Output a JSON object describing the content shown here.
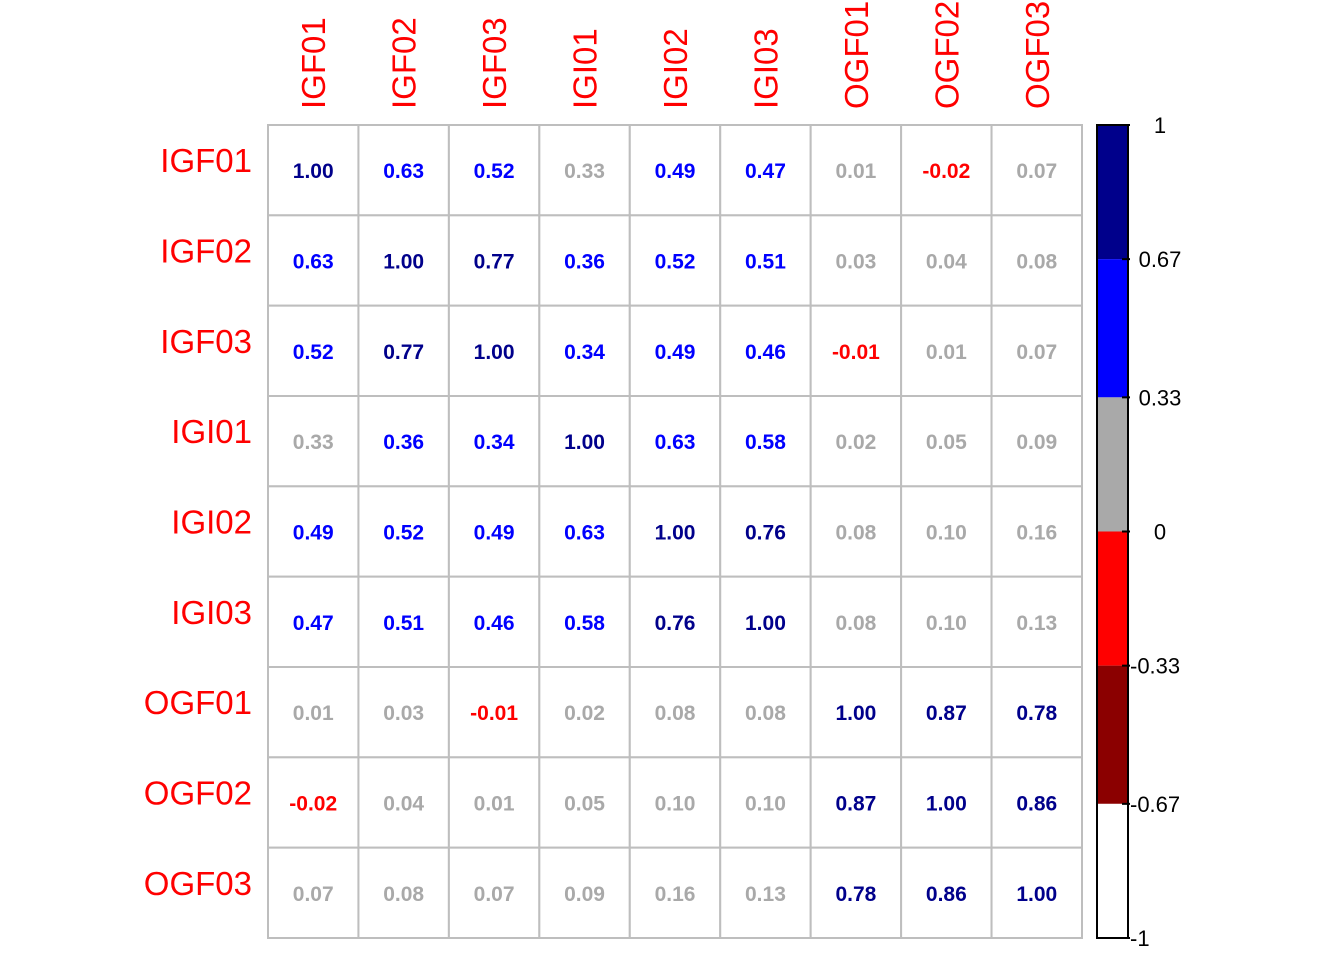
{
  "chart_data": {
    "type": "heatmap",
    "title": "",
    "row_labels": [
      "IGF01",
      "IGF02",
      "IGF03",
      "IGI01",
      "IGI02",
      "IGI03",
      "OGF01",
      "OGF02",
      "OGF03"
    ],
    "col_labels": [
      "IGF01",
      "IGF02",
      "IGF03",
      "IGI01",
      "IGI02",
      "IGI03",
      "OGF01",
      "OGF02",
      "OGF03"
    ],
    "values": [
      [
        1.0,
        0.63,
        0.52,
        0.33,
        0.49,
        0.47,
        0.01,
        -0.02,
        0.07
      ],
      [
        0.63,
        1.0,
        0.77,
        0.36,
        0.52,
        0.51,
        0.03,
        0.04,
        0.08
      ],
      [
        0.52,
        0.77,
        1.0,
        0.34,
        0.49,
        0.46,
        -0.01,
        0.01,
        0.07
      ],
      [
        0.33,
        0.36,
        0.34,
        1.0,
        0.63,
        0.58,
        0.02,
        0.05,
        0.09
      ],
      [
        0.49,
        0.52,
        0.49,
        0.63,
        1.0,
        0.76,
        0.08,
        0.1,
        0.16
      ],
      [
        0.47,
        0.51,
        0.46,
        0.58,
        0.76,
        1.0,
        0.08,
        0.1,
        0.13
      ],
      [
        0.01,
        0.03,
        -0.01,
        0.02,
        0.08,
        0.08,
        1.0,
        0.87,
        0.78
      ],
      [
        -0.02,
        0.04,
        0.01,
        0.05,
        0.1,
        0.1,
        0.87,
        1.0,
        0.86
      ],
      [
        0.07,
        0.08,
        0.07,
        0.09,
        0.16,
        0.13,
        0.78,
        0.86,
        1.0
      ]
    ],
    "value_labels": [
      [
        "1.00",
        "0.63",
        "0.52",
        "0.33",
        "0.49",
        "0.47",
        "0.01",
        "-0.02",
        "0.07"
      ],
      [
        "0.63",
        "1.00",
        "0.77",
        "0.36",
        "0.52",
        "0.51",
        "0.03",
        "0.04",
        "0.08"
      ],
      [
        "0.52",
        "0.77",
        "1.00",
        "0.34",
        "0.49",
        "0.46",
        "-0.01",
        "0.01",
        "0.07"
      ],
      [
        "0.33",
        "0.36",
        "0.34",
        "1.00",
        "0.63",
        "0.58",
        "0.02",
        "0.05",
        "0.09"
      ],
      [
        "0.49",
        "0.52",
        "0.49",
        "0.63",
        "1.00",
        "0.76",
        "0.08",
        "0.10",
        "0.16"
      ],
      [
        "0.47",
        "0.51",
        "0.46",
        "0.58",
        "0.76",
        "1.00",
        "0.08",
        "0.10",
        "0.13"
      ],
      [
        "0.01",
        "0.03",
        "-0.01",
        "0.02",
        "0.08",
        "0.08",
        "1.00",
        "0.87",
        "0.78"
      ],
      [
        "-0.02",
        "0.04",
        "0.01",
        "0.05",
        "0.10",
        "0.10",
        "0.87",
        "1.00",
        "0.86"
      ],
      [
        "0.07",
        "0.08",
        "0.07",
        "0.09",
        "0.16",
        "0.13",
        "0.78",
        "0.86",
        "1.00"
      ]
    ],
    "colorbar": {
      "range": [
        -1,
        1
      ],
      "tick_labels": [
        "1",
        "0.67",
        "0.33",
        "0",
        "-0.33",
        "-0.67",
        "-1"
      ],
      "tick_values": [
        1,
        0.67,
        0.33,
        0,
        -0.33,
        -0.67,
        -1
      ],
      "bins": [
        {
          "from": 0.67,
          "to": 1,
          "color": "#00008b"
        },
        {
          "from": 0.33,
          "to": 0.67,
          "color": "#0000ff"
        },
        {
          "from": 0,
          "to": 0.33,
          "color": "#a9a9a9"
        },
        {
          "from": -0.33,
          "to": 0,
          "color": "#ff0000"
        },
        {
          "from": -0.67,
          "to": -0.33,
          "color": "#8b0000"
        },
        {
          "from": -1,
          "to": -0.67,
          "color": "#ffffff"
        }
      ]
    },
    "label_color": "#ff0000",
    "grid_color": "#bebebe",
    "cell_fill": "none",
    "legend_placement": "right"
  }
}
